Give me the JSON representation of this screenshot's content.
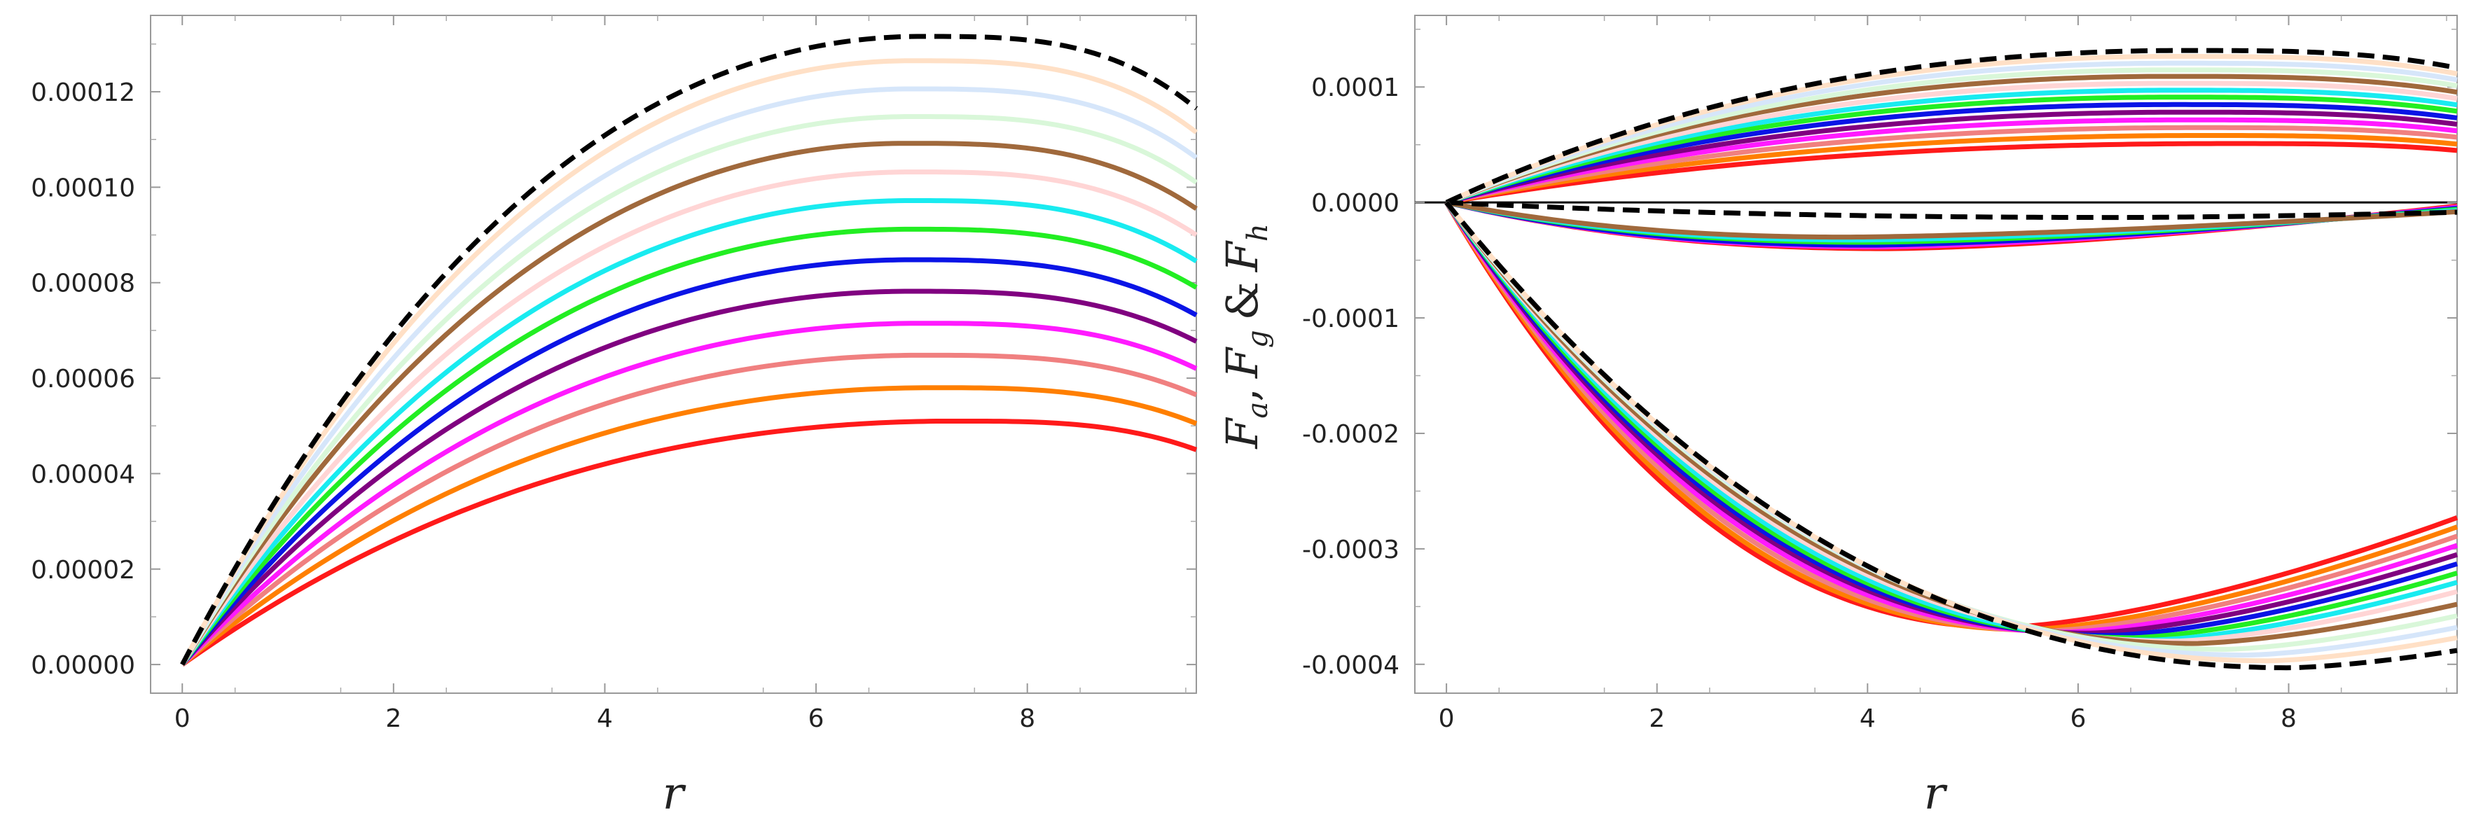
{
  "chart_data": [
    {
      "type": "line",
      "title": "",
      "xlabel": "r",
      "ylabel": "",
      "xlim": [
        -0.3,
        9.6
      ],
      "ylim": [
        -6e-06,
        0.000136
      ],
      "x_ticks": [
        0,
        2,
        4,
        6,
        8
      ],
      "x_tick_labels": [
        "0",
        "2",
        "4",
        "6",
        "8"
      ],
      "y_ticks": [
        0,
        2e-05,
        4e-05,
        6e-05,
        8e-05,
        0.0001,
        0.00012
      ],
      "y_tick_labels": [
        "0.00000",
        "0.00002",
        "0.00004",
        "0.00006",
        "0.00008",
        "0.00010",
        "0.00012"
      ],
      "grid": false,
      "x_domain": [
        0,
        9.6
      ],
      "series": [
        {
          "name": "red",
          "color": "#ff1a1a",
          "peak_r": 7.3,
          "peak": 5.1e-05,
          "end": 4.5e-05
        },
        {
          "name": "orange",
          "color": "#ff7f00",
          "peak_r": 7.1,
          "peak": 5.8e-05,
          "end": 5.05e-05
        },
        {
          "name": "salmon",
          "color": "#f08080",
          "peak_r": 7.0,
          "peak": 6.48e-05,
          "end": 5.65e-05
        },
        {
          "name": "magenta",
          "color": "#ff1aff",
          "peak_r": 7.0,
          "peak": 7.15e-05,
          "end": 6.2e-05
        },
        {
          "name": "purple",
          "color": "#800080",
          "peak_r": 6.9,
          "peak": 7.82e-05,
          "end": 6.77e-05
        },
        {
          "name": "blue",
          "color": "#0a14e6",
          "peak_r": 6.9,
          "peak": 8.48e-05,
          "end": 7.32e-05
        },
        {
          "name": "green",
          "color": "#22ee22",
          "peak_r": 6.9,
          "peak": 9.12e-05,
          "end": 7.9e-05
        },
        {
          "name": "cyan",
          "color": "#19ebf0",
          "peak_r": 6.9,
          "peak": 9.72e-05,
          "end": 8.45e-05
        },
        {
          "name": "pink-light",
          "color": "#ffd5d5",
          "peak_r": 6.9,
          "peak": 0.0001032,
          "end": 9e-05
        },
        {
          "name": "brown",
          "color": "#a0693c",
          "peak_r": 6.85,
          "peak": 0.0001092,
          "end": 9.55e-05
        },
        {
          "name": "green-light",
          "color": "#d9f7d9",
          "peak_r": 6.9,
          "peak": 0.0001148,
          "end": 0.000101
        },
        {
          "name": "blue-light",
          "color": "#d6e6fa",
          "peak_r": 6.9,
          "peak": 0.0001206,
          "end": 0.0001062
        },
        {
          "name": "peach-light",
          "color": "#ffe0c6",
          "peak_r": 6.9,
          "peak": 0.0001265,
          "end": 0.0001115
        },
        {
          "name": "black-dashed",
          "color": "#000000",
          "dashed": true,
          "peak_r": 7.0,
          "peak": 0.0001316,
          "end": 0.0001165
        }
      ]
    },
    {
      "type": "line",
      "title": "",
      "xlabel": "r",
      "ylabel": "F_a, F_g & F_h",
      "ylabel_parts": {
        "F": "F",
        "a": "a",
        "comma1": ",",
        "g": "g",
        "amp": "&",
        "h": "h"
      },
      "xlim": [
        -0.3,
        9.6
      ],
      "ylim": [
        -0.000425,
        0.000162
      ],
      "x_ticks": [
        0,
        2,
        4,
        6,
        8
      ],
      "x_tick_labels": [
        "0",
        "2",
        "4",
        "6",
        "8"
      ],
      "y_ticks": [
        0.0001,
        0,
        -0.0001,
        -0.0002,
        -0.0003,
        -0.0004
      ],
      "y_tick_labels": [
        "0.0001",
        "0.0000",
        "-0.0001",
        "-0.0002",
        "-0.0003",
        "-0.0004"
      ],
      "grid": false,
      "zero_line": true,
      "x_domain": [
        0,
        9.6
      ],
      "upper_group": [
        {
          "name": "red",
          "color": "#ff1a1a",
          "peak_r": 7.4,
          "peak": 5.1e-05,
          "end": 4.5e-05
        },
        {
          "name": "orange",
          "color": "#ff7f00",
          "peak_r": 7.2,
          "peak": 5.8e-05,
          "end": 5.05e-05
        },
        {
          "name": "salmon",
          "color": "#f08080",
          "peak_r": 7.1,
          "peak": 6.48e-05,
          "end": 5.65e-05
        },
        {
          "name": "magenta",
          "color": "#ff1aff",
          "peak_r": 7.0,
          "peak": 7.15e-05,
          "end": 6.2e-05
        },
        {
          "name": "purple",
          "color": "#800080",
          "peak_r": 7.0,
          "peak": 7.82e-05,
          "end": 6.77e-05
        },
        {
          "name": "blue",
          "color": "#0a14e6",
          "peak_r": 6.9,
          "peak": 8.48e-05,
          "end": 7.32e-05
        },
        {
          "name": "green",
          "color": "#22ee22",
          "peak_r": 6.9,
          "peak": 9.12e-05,
          "end": 7.9e-05
        },
        {
          "name": "cyan",
          "color": "#19ebf0",
          "peak_r": 6.9,
          "peak": 9.72e-05,
          "end": 8.45e-05
        },
        {
          "name": "pink-light",
          "color": "#ffd5d5",
          "peak_r": 6.9,
          "peak": 0.0001032,
          "end": 9e-05
        },
        {
          "name": "brown",
          "color": "#a0693c",
          "peak_r": 6.85,
          "peak": 0.0001092,
          "end": 9.55e-05
        },
        {
          "name": "green-light",
          "color": "#d9f7d9",
          "peak_r": 6.9,
          "peak": 0.0001148,
          "end": 0.000101
        },
        {
          "name": "blue-light",
          "color": "#d6e6fa",
          "peak_r": 6.9,
          "peak": 0.0001206,
          "end": 0.0001062
        },
        {
          "name": "peach-light",
          "color": "#ffe0c6",
          "peak_r": 6.9,
          "peak": 0.0001265,
          "end": 0.0001115
        },
        {
          "name": "black-dashed",
          "color": "#000000",
          "dashed": true,
          "peak_r": 7.0,
          "peak": 0.0001316,
          "end": 0.0001165
        }
      ],
      "middle_group": [
        {
          "name": "red",
          "color": "#ff1a1a",
          "min_r": 4.2,
          "min": -4e-05,
          "end": -3e-06
        },
        {
          "name": "magenta",
          "color": "#ff1aff",
          "min_r": 4.1,
          "min": -3.85e-05,
          "end": -4e-06
        },
        {
          "name": "blue",
          "color": "#0a14e6",
          "min_r": 4.0,
          "min": -3.7e-05,
          "end": -5e-06
        },
        {
          "name": "green",
          "color": "#22ee22",
          "min_r": 4.0,
          "min": -3.45e-05,
          "end": -6e-06
        },
        {
          "name": "cyan",
          "color": "#19ebf0",
          "min_r": 3.9,
          "min": -3.25e-05,
          "end": -7e-06
        },
        {
          "name": "brown",
          "color": "#a0693c",
          "min_r": 3.8,
          "min": -3e-05,
          "end": -8e-06
        },
        {
          "name": "black-dashed",
          "color": "#000000",
          "dashed": true,
          "min_r": 6.4,
          "min": -1.3e-05,
          "end": -8.5e-06
        }
      ],
      "lower_group": [
        {
          "name": "red",
          "color": "#ff1a1a",
          "min_r": 5.3,
          "min": -0.000368,
          "end": -0.000273
        },
        {
          "name": "orange",
          "color": "#ff7f00",
          "min_r": 5.5,
          "min": -0.00037,
          "end": -0.000281
        },
        {
          "name": "salmon",
          "color": "#f08080",
          "min_r": 5.7,
          "min": -0.000371,
          "end": -0.000289
        },
        {
          "name": "magenta",
          "color": "#ff1aff",
          "min_r": 5.9,
          "min": -0.000372,
          "end": -0.000297
        },
        {
          "name": "purple",
          "color": "#800080",
          "min_r": 6.1,
          "min": -0.000373,
          "end": -0.000305
        },
        {
          "name": "blue",
          "color": "#0a14e6",
          "min_r": 6.3,
          "min": -0.000375,
          "end": -0.000313
        },
        {
          "name": "green",
          "color": "#22ee22",
          "min_r": 6.5,
          "min": -0.000377,
          "end": -0.000321
        },
        {
          "name": "cyan",
          "color": "#19ebf0",
          "min_r": 6.7,
          "min": -0.000379,
          "end": -0.000329
        },
        {
          "name": "pink-light",
          "color": "#ffd5d5",
          "min_r": 6.9,
          "min": -0.00038,
          "end": -0.000337
        },
        {
          "name": "brown",
          "color": "#a0693c",
          "min_r": 7.1,
          "min": -0.000382,
          "end": -0.000348
        },
        {
          "name": "green-light",
          "color": "#d9f7d9",
          "min_r": 7.4,
          "min": -0.000387,
          "end": -0.000358
        },
        {
          "name": "blue-light",
          "color": "#d6e6fa",
          "min_r": 7.6,
          "min": -0.000392,
          "end": -0.000368
        },
        {
          "name": "peach-light",
          "color": "#ffe0c6",
          "min_r": 7.8,
          "min": -0.000397,
          "end": -0.000377
        },
        {
          "name": "black-dashed",
          "color": "#000000",
          "dashed": true,
          "min_r": 8.0,
          "min": -0.000403,
          "end": -0.000388
        }
      ]
    }
  ]
}
